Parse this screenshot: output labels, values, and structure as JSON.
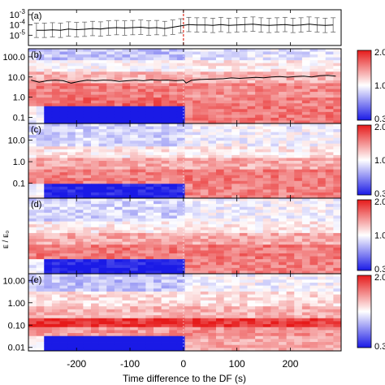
{
  "figure": {
    "xlabel": "Time difference to the DF (s)",
    "ylabel_fragment": "ᴇ / ᴇ₀"
  },
  "colors": {
    "low": "#1a1ae6",
    "mid": "#ffffff",
    "high": "#e61a1a",
    "marker": "#e03020",
    "curve": "#000000"
  },
  "chart_data": [
    {
      "panel": "(a)",
      "type": "line",
      "x": [
        -275,
        -260,
        -245,
        -230,
        -215,
        -200,
        -185,
        -170,
        -155,
        -140,
        -125,
        -110,
        -95,
        -80,
        -65,
        -50,
        -35,
        -20,
        -5,
        10,
        25,
        40,
        55,
        70,
        85,
        100,
        115,
        130,
        145,
        160,
        175,
        190,
        205,
        220,
        235,
        250,
        265,
        280
      ],
      "y": [
        3e-05,
        3e-05,
        3.3e-05,
        3e-05,
        4e-05,
        3.5e-05,
        3.8e-05,
        4.5e-05,
        4e-05,
        5e-05,
        5.5e-05,
        5e-05,
        5.5e-05,
        6e-05,
        5e-05,
        5.5e-05,
        4.5e-05,
        6e-05,
        8e-05,
        0.00011,
        0.0001,
        0.0001,
        9e-05,
        0.00011,
        9e-05,
        0.0001,
        0.00011,
        0.00012,
        0.0001,
        9e-05,
        0.0001,
        0.00011,
        9e-05,
        0.0001,
        0.00012,
        0.0001,
        9e-05,
        0.0001
      ],
      "error_factor": 5,
      "yscale": "log",
      "ylim": [
        1e-06,
        0.003
      ],
      "yticks": [
        "10^-3",
        "10^-4",
        "10^-5"
      ],
      "xlim": [
        -290,
        295
      ],
      "marker_x": 0
    },
    {
      "panel": "(b)",
      "type": "heatmap",
      "yscale": "log",
      "ylim": [
        0.05,
        250
      ],
      "ytick_labels": [
        "100.0",
        "10.0",
        "1.0",
        "0.1"
      ],
      "ytick_values": [
        100,
        10,
        1,
        0.1
      ],
      "colorbar": {
        "labels": [
          "2.0",
          "1.0",
          "0.3"
        ]
      },
      "bands": [
        {
          "range": [
            40,
            250
          ],
          "pre": 0.25,
          "post": 1.35
        },
        {
          "range": [
            12,
            40
          ],
          "pre": 1.45,
          "post": 1.3
        },
        {
          "range": [
            3,
            12
          ],
          "pre": 1.35,
          "post": 1.25
        },
        {
          "range": [
            0.6,
            3
          ],
          "pre": 1.05,
          "post": 1.05
        },
        {
          "range": [
            0.2,
            0.6
          ],
          "pre": 0.8,
          "post": 0.85
        },
        {
          "range": [
            0.05,
            0.2
          ],
          "pre": 0.6,
          "post": 0.7
        }
      ],
      "curve": {
        "x": [
          -285,
          -270,
          -255,
          -240,
          -225,
          -210,
          -195,
          -180,
          -165,
          -150,
          -135,
          -120,
          -105,
          -90,
          -75,
          -60,
          -45,
          -30,
          -15,
          0,
          5,
          15,
          30,
          45,
          60,
          75,
          90,
          105,
          120,
          135,
          150,
          165,
          180,
          195,
          210,
          225,
          240,
          255,
          270,
          285
        ],
        "y": [
          7,
          5.5,
          6.5,
          7,
          6.5,
          5,
          6,
          7,
          6.5,
          7,
          6.8,
          6,
          6.5,
          7,
          6.5,
          7.2,
          6.8,
          7,
          6.5,
          7,
          5,
          6.8,
          7.5,
          7.8,
          8,
          8.2,
          9,
          8.5,
          9,
          9.5,
          9.2,
          10,
          10.5,
          9.8,
          10.5,
          11,
          10,
          11.5,
          12,
          11
        ]
      }
    },
    {
      "panel": "(c)",
      "type": "heatmap",
      "yscale": "log",
      "ylim": [
        0.02,
        60
      ],
      "ytick_labels": [
        "10.0",
        "1.0",
        "0.1"
      ],
      "ytick_values": [
        10,
        1,
        0.1
      ],
      "colorbar": {
        "labels": [
          "2.0",
          "1.0",
          "0.3"
        ]
      },
      "bands": [
        {
          "range": [
            12,
            60
          ],
          "pre": 0.3,
          "post": 1.3
        },
        {
          "range": [
            3,
            12
          ],
          "pre": 1.3,
          "post": 1.35
        },
        {
          "range": [
            0.9,
            3
          ],
          "pre": 1.1,
          "post": 1.1
        },
        {
          "range": [
            0.25,
            0.9
          ],
          "pre": 0.85,
          "post": 0.85
        },
        {
          "range": [
            0.02,
            0.25
          ],
          "pre": 0.65,
          "post": 0.75
        }
      ]
    },
    {
      "panel": "(d)",
      "type": "heatmap",
      "yscale": "log",
      "ylim": [
        0.02,
        60
      ],
      "ytick_labels": [],
      "ytick_values": [],
      "colorbar": {
        "labels": [
          "2.0",
          "1.0",
          "0.3"
        ]
      },
      "bands": [
        {
          "range": [
            12,
            60
          ],
          "pre": 0.3,
          "post": 1.3
        },
        {
          "range": [
            3,
            12
          ],
          "pre": 1.35,
          "post": 1.35
        },
        {
          "range": [
            0.9,
            3
          ],
          "pre": 1.1,
          "post": 1.1
        },
        {
          "range": [
            0.25,
            0.9
          ],
          "pre": 0.85,
          "post": 0.85
        },
        {
          "range": [
            0.02,
            0.25
          ],
          "pre": 0.65,
          "post": 0.75
        }
      ]
    },
    {
      "panel": "(e)",
      "type": "heatmap",
      "yscale": "log",
      "ylim": [
        0.007,
        20
      ],
      "ytick_labels": [
        "10.00",
        "1.00",
        "0.10",
        "0.01"
      ],
      "ytick_values": [
        10,
        1,
        0.1,
        0.01
      ],
      "colorbar": {
        "labels": [
          "2.0",
          "0.3"
        ]
      },
      "xticks": [
        -200,
        -100,
        0,
        100,
        200
      ],
      "bands": [
        {
          "range": [
            4,
            20
          ],
          "pre": 0.2,
          "post": 1.1
        },
        {
          "range": [
            1.5,
            4
          ],
          "pre": 1.2,
          "post": 1.2
        },
        {
          "range": [
            0.7,
            1.5
          ],
          "pre": 1.8,
          "post": 1.75
        },
        {
          "range": [
            0.2,
            0.7
          ],
          "pre": 1.05,
          "post": 1.05
        },
        {
          "range": [
            0.04,
            0.2
          ],
          "pre": 0.9,
          "post": 0.9
        },
        {
          "range": [
            0.007,
            0.04
          ],
          "pre": 0.6,
          "post": 0.75
        }
      ]
    }
  ]
}
